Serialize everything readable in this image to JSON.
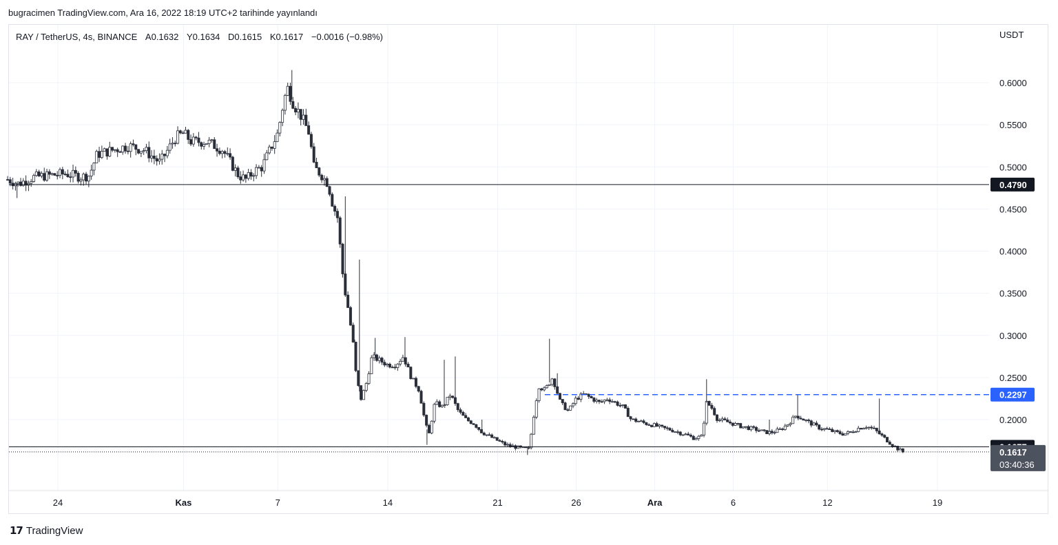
{
  "header": {
    "published": "bugracimen TradingView.com, Ara 16, 2022 18:19 UTC+2 tarihinde yayınlandı"
  },
  "legend": {
    "symbol": "RAY / TetherUS, 4s, BINANCE",
    "open": "A0.1632",
    "high": "Y0.1634",
    "low": "D0.1615",
    "close": "K0.1617",
    "change": "−0.0016 (−0.98%)"
  },
  "footer": {
    "brand": "TradingView"
  },
  "colors": {
    "grid": "#f0f3fa",
    "candle": "#2a2e39",
    "dashed": "#2962ff",
    "label_dark": "#131722",
    "label_grey": "#4d525f"
  },
  "chart_data": {
    "type": "candlestick",
    "currency_label": "USDT",
    "ylim": [
      0.105,
      0.645
    ],
    "y_ticks": [
      "0.6000",
      "0.5500",
      "0.5000",
      "0.4500",
      "0.4000",
      "0.3500",
      "0.3000",
      "0.2500",
      "0.2000"
    ],
    "x_ticks": [
      {
        "label": "24",
        "day": 24,
        "bold": false
      },
      {
        "label": "Kas",
        "day": 32,
        "bold": true
      },
      {
        "label": "7",
        "day": 38,
        "bold": false
      },
      {
        "label": "14",
        "day": 45,
        "bold": false
      },
      {
        "label": "21",
        "day": 52,
        "bold": false
      },
      {
        "label": "26",
        "day": 57,
        "bold": false
      },
      {
        "label": "Ara",
        "day": 62,
        "bold": true
      },
      {
        "label": "6",
        "day": 67,
        "bold": false
      },
      {
        "label": "12",
        "day": 73,
        "bold": false
      },
      {
        "label": "19",
        "day": 80,
        "bold": false
      }
    ],
    "x_range_days": [
      20.8,
      83.5
    ],
    "horizontal_lines": [
      {
        "value": 0.479,
        "label": "0.4790",
        "style": "solid",
        "color": "#131722"
      },
      {
        "value": 0.2297,
        "label": "0.2297",
        "style": "dashed",
        "color": "#2962ff",
        "from_day": 55.0
      },
      {
        "value": 0.1677,
        "label": "0.1677",
        "style": "solid",
        "color": "#131722"
      }
    ],
    "last_price": {
      "value": 0.1617,
      "label": "0.1617",
      "countdown": "03:40:36"
    },
    "price_path": [
      [
        20.8,
        0.485
      ],
      [
        21.5,
        0.48
      ],
      [
        22.5,
        0.488
      ],
      [
        23.5,
        0.49
      ],
      [
        24.5,
        0.492
      ],
      [
        25.5,
        0.488
      ],
      [
        26.0,
        0.49
      ],
      [
        26.5,
        0.515
      ],
      [
        27.5,
        0.52
      ],
      [
        28.5,
        0.525
      ],
      [
        29.5,
        0.52
      ],
      [
        30.5,
        0.505
      ],
      [
        31.0,
        0.52
      ],
      [
        31.5,
        0.535
      ],
      [
        32.0,
        0.54
      ],
      [
        32.5,
        0.53
      ],
      [
        33.5,
        0.53
      ],
      [
        34.5,
        0.52
      ],
      [
        35.0,
        0.505
      ],
      [
        35.5,
        0.49
      ],
      [
        36.0,
        0.485
      ],
      [
        36.5,
        0.495
      ],
      [
        37.0,
        0.5
      ],
      [
        37.5,
        0.52
      ],
      [
        38.0,
        0.54
      ],
      [
        38.3,
        0.57
      ],
      [
        38.6,
        0.595
      ],
      [
        39.0,
        0.575
      ],
      [
        39.5,
        0.56
      ],
      [
        40.0,
        0.54
      ],
      [
        40.3,
        0.5
      ],
      [
        40.8,
        0.49
      ],
      [
        41.2,
        0.48
      ],
      [
        41.5,
        0.455
      ],
      [
        41.8,
        0.44
      ],
      [
        42.0,
        0.4
      ],
      [
        42.2,
        0.36
      ],
      [
        42.5,
        0.33
      ],
      [
        42.8,
        0.29
      ],
      [
        43.0,
        0.25
      ],
      [
        43.3,
        0.225
      ],
      [
        43.6,
        0.24
      ],
      [
        44.0,
        0.275
      ],
      [
        44.5,
        0.27
      ],
      [
        45.0,
        0.265
      ],
      [
        45.5,
        0.265
      ],
      [
        46.0,
        0.275
      ],
      [
        46.5,
        0.25
      ],
      [
        47.0,
        0.235
      ],
      [
        47.3,
        0.205
      ],
      [
        47.6,
        0.18
      ],
      [
        48.0,
        0.22
      ],
      [
        48.5,
        0.215
      ],
      [
        49.0,
        0.23
      ],
      [
        49.5,
        0.21
      ],
      [
        50.0,
        0.2
      ],
      [
        50.5,
        0.195
      ],
      [
        51.0,
        0.185
      ],
      [
        51.5,
        0.18
      ],
      [
        52.0,
        0.175
      ],
      [
        52.5,
        0.17
      ],
      [
        53.0,
        0.168
      ],
      [
        53.5,
        0.166
      ],
      [
        54.0,
        0.165
      ],
      [
        54.3,
        0.205
      ],
      [
        54.6,
        0.24
      ],
      [
        55.0,
        0.235
      ],
      [
        55.5,
        0.25
      ],
      [
        56.0,
        0.22
      ],
      [
        56.5,
        0.21
      ],
      [
        57.0,
        0.225
      ],
      [
        57.5,
        0.23
      ],
      [
        58.0,
        0.225
      ],
      [
        58.5,
        0.22
      ],
      [
        59.0,
        0.225
      ],
      [
        59.5,
        0.22
      ],
      [
        60.0,
        0.215
      ],
      [
        60.5,
        0.2
      ],
      [
        61.0,
        0.198
      ],
      [
        61.5,
        0.195
      ],
      [
        62.0,
        0.193
      ],
      [
        62.5,
        0.19
      ],
      [
        63.0,
        0.188
      ],
      [
        63.5,
        0.185
      ],
      [
        64.0,
        0.182
      ],
      [
        64.5,
        0.178
      ],
      [
        65.0,
        0.18
      ],
      [
        65.3,
        0.22
      ],
      [
        65.6,
        0.215
      ],
      [
        66.0,
        0.2
      ],
      [
        66.5,
        0.198
      ],
      [
        67.0,
        0.195
      ],
      [
        67.5,
        0.192
      ],
      [
        68.0,
        0.19
      ],
      [
        68.5,
        0.188
      ],
      [
        69.0,
        0.185
      ],
      [
        69.5,
        0.185
      ],
      [
        70.0,
        0.188
      ],
      [
        70.5,
        0.195
      ],
      [
        71.0,
        0.205
      ],
      [
        71.5,
        0.2
      ],
      [
        72.0,
        0.195
      ],
      [
        72.5,
        0.19
      ],
      [
        73.0,
        0.188
      ],
      [
        73.5,
        0.185
      ],
      [
        74.0,
        0.183
      ],
      [
        74.5,
        0.185
      ],
      [
        75.0,
        0.19
      ],
      [
        75.5,
        0.192
      ],
      [
        76.0,
        0.188
      ],
      [
        76.5,
        0.18
      ],
      [
        77.0,
        0.172
      ],
      [
        77.5,
        0.165
      ],
      [
        77.8,
        0.1617
      ]
    ],
    "spikes": [
      {
        "day": 21.4,
        "low": 0.463
      },
      {
        "day": 38.9,
        "high": 0.615
      },
      {
        "day": 42.3,
        "high": 0.465
      },
      {
        "day": 42.9,
        "low": 0.295
      },
      {
        "day": 43.2,
        "high": 0.39
      },
      {
        "day": 44.2,
        "high": 0.297
      },
      {
        "day": 46.1,
        "high": 0.298
      },
      {
        "day": 47.5,
        "low": 0.17
      },
      {
        "day": 48.6,
        "high": 0.271
      },
      {
        "day": 49.3,
        "high": 0.275
      },
      {
        "day": 51.0,
        "high": 0.2
      },
      {
        "day": 53.9,
        "low": 0.158
      },
      {
        "day": 55.3,
        "high": 0.296
      },
      {
        "day": 55.8,
        "high": 0.255
      },
      {
        "day": 65.3,
        "high": 0.248
      },
      {
        "day": 69.3,
        "high": 0.2
      },
      {
        "day": 71.1,
        "high": 0.23
      },
      {
        "day": 76.3,
        "high": 0.225
      }
    ]
  }
}
